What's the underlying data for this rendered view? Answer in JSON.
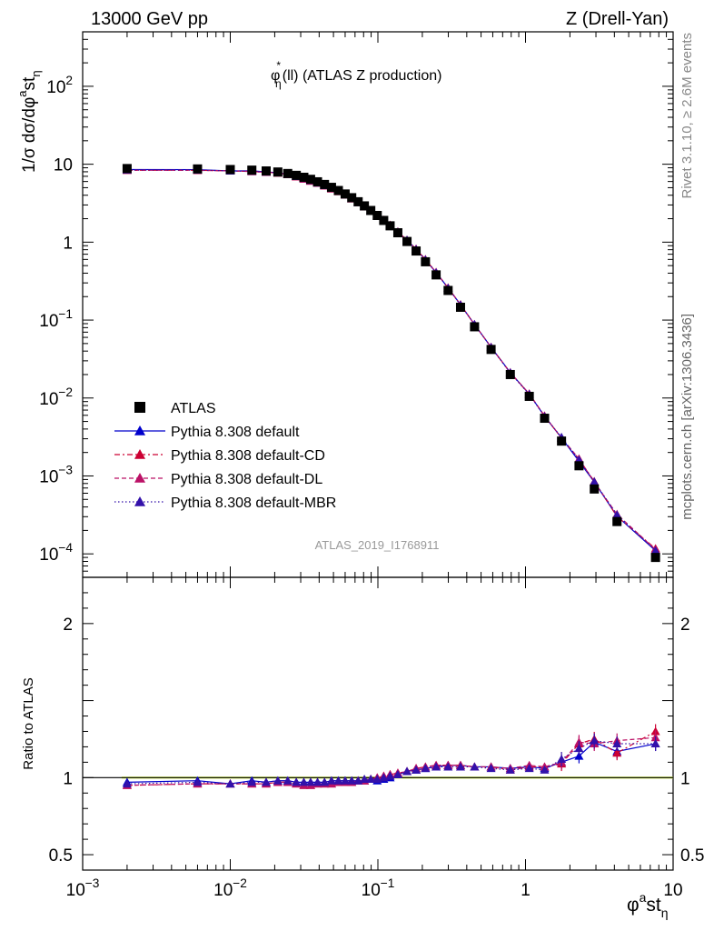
{
  "header": {
    "left": "13000 GeV pp",
    "right": "Z (Drell-Yan)"
  },
  "side_labels": {
    "rivet": "Rivet 3.1.10, ≥ 2.6M events",
    "mcplots": "mcplots.cern.ch [arXiv:1306.3436]"
  },
  "chart_data": {
    "type": "scatter",
    "title": "φ*η(ll) (ATLAS Z production)",
    "title_parts": {
      "main": "φ",
      "sup": "*",
      "sub": "η",
      "rest": "(ll) (ATLAS Z production)"
    },
    "analysis_id": "ATLAS_2019_I1768911",
    "xlabel": "φᵃstη",
    "xlabel_parts": {
      "a": "φ",
      "sup": "a",
      "b": "st",
      "sub": "η"
    },
    "ylabel": "1/σ dσ/dφᵃstη",
    "ylabel_parts": {
      "a": "1/σ dσ/dφ",
      "sup": "a",
      "b": "st",
      "sub": "η"
    },
    "ratio_ylabel": "Ratio to ATLAS",
    "xscale": "log",
    "yscale": "log",
    "xlim": [
      0.001,
      10
    ],
    "ylim": [
      5e-05,
      500
    ],
    "ratio_ylim": [
      0.4,
      2.3
    ],
    "x_ticks": [
      {
        "v": 0.001,
        "base": "10",
        "exp": "−3"
      },
      {
        "v": 0.01,
        "base": "10",
        "exp": "−2"
      },
      {
        "v": 0.1,
        "base": "10",
        "exp": "−1"
      },
      {
        "v": 1,
        "base": "1",
        "exp": ""
      },
      {
        "v": 10,
        "base": "10",
        "exp": ""
      }
    ],
    "y_ticks": [
      {
        "v": 0.0001,
        "base": "10",
        "exp": "−4"
      },
      {
        "v": 0.001,
        "base": "10",
        "exp": "−3"
      },
      {
        "v": 0.01,
        "base": "10",
        "exp": "−2"
      },
      {
        "v": 0.1,
        "base": "10",
        "exp": "−1"
      },
      {
        "v": 1,
        "base": "1",
        "exp": ""
      },
      {
        "v": 10,
        "base": "10",
        "exp": ""
      },
      {
        "v": 100,
        "base": "10",
        "exp": "2"
      }
    ],
    "ratio_ticks": [
      {
        "v": 0.5,
        "label": "0.5"
      },
      {
        "v": 1,
        "label": "1"
      },
      {
        "v": 2,
        "label": "2"
      }
    ],
    "legend_position": "bottom-left",
    "x": [
      0.002,
      0.006,
      0.01,
      0.014,
      0.0175,
      0.021,
      0.0245,
      0.028,
      0.0315,
      0.035,
      0.039,
      0.0435,
      0.0485,
      0.054,
      0.06,
      0.0665,
      0.0735,
      0.081,
      0.0895,
      0.099,
      0.1095,
      0.121,
      0.1365,
      0.1575,
      0.1815,
      0.21,
      0.248,
      0.299,
      0.363,
      0.4515,
      0.5845,
      0.789,
      1.0605,
      1.3465,
      1.7535,
      2.304,
      2.9235,
      4.167,
      7.6
    ],
    "atlas": [
      8.8,
      8.7,
      8.55,
      8.4,
      8.2,
      7.95,
      7.6,
      7.2,
      6.8,
      6.4,
      5.95,
      5.5,
      5.05,
      4.6,
      4.15,
      3.72,
      3.3,
      2.92,
      2.55,
      2.2,
      1.9,
      1.62,
      1.32,
      1.02,
      0.77,
      0.56,
      0.38,
      0.24,
      0.146,
      0.082,
      0.042,
      0.02,
      0.0105,
      0.0055,
      0.0028,
      0.00135,
      0.00068,
      0.00026,
      9e-05
    ],
    "series": [
      {
        "name": "Pythia 8.308 default",
        "color": "#0000cc",
        "dash": "",
        "ratio": [
          0.97,
          0.98,
          0.96,
          0.98,
          0.97,
          0.98,
          0.98,
          0.97,
          0.97,
          0.97,
          0.97,
          0.97,
          0.98,
          0.98,
          0.98,
          0.98,
          0.98,
          0.98,
          0.99,
          0.98,
          0.99,
          1.0,
          1.02,
          1.04,
          1.05,
          1.06,
          1.07,
          1.08,
          1.08,
          1.07,
          1.07,
          1.06,
          1.07,
          1.06,
          1.1,
          1.14,
          1.23,
          1.17,
          1.22
        ]
      },
      {
        "name": "Pythia 8.308 default-CD",
        "color": "#cc0033",
        "dash": "6,3,2,3",
        "ratio": [
          0.95,
          0.96,
          0.96,
          0.96,
          0.96,
          0.97,
          0.97,
          0.96,
          0.95,
          0.95,
          0.96,
          0.96,
          0.96,
          0.97,
          0.97,
          0.97,
          0.98,
          0.98,
          0.99,
          1.0,
          1.01,
          1.02,
          1.03,
          1.04,
          1.06,
          1.07,
          1.08,
          1.08,
          1.08,
          1.07,
          1.07,
          1.05,
          1.07,
          1.07,
          1.09,
          1.22,
          1.25,
          1.16,
          1.3
        ]
      },
      {
        "name": "Pythia 8.308 default-DL",
        "color": "#bb1166",
        "dash": "5,3",
        "ratio": [
          0.95,
          0.96,
          0.96,
          0.96,
          0.96,
          0.97,
          0.97,
          0.96,
          0.95,
          0.95,
          0.96,
          0.96,
          0.96,
          0.97,
          0.97,
          0.97,
          0.98,
          0.98,
          0.99,
          1.0,
          1.01,
          1.02,
          1.03,
          1.04,
          1.06,
          1.07,
          1.08,
          1.08,
          1.08,
          1.07,
          1.07,
          1.06,
          1.08,
          1.07,
          1.1,
          1.23,
          1.22,
          1.24,
          1.26
        ]
      },
      {
        "name": "Pythia 8.308 default-MBR",
        "color": "#3311aa",
        "dash": "1.5,2.5",
        "ratio": [
          0.96,
          0.97,
          0.96,
          0.97,
          0.97,
          0.98,
          0.98,
          0.97,
          0.97,
          0.97,
          0.97,
          0.97,
          0.98,
          0.98,
          0.98,
          0.98,
          0.98,
          0.99,
          0.99,
          0.99,
          1.0,
          1.01,
          1.02,
          1.04,
          1.05,
          1.06,
          1.07,
          1.07,
          1.07,
          1.07,
          1.06,
          1.05,
          1.06,
          1.05,
          1.12,
          1.19,
          1.24,
          1.22,
          1.22
        ]
      }
    ],
    "legend": [
      "ATLAS",
      "Pythia 8.308 default",
      "Pythia 8.308 default-CD",
      "Pythia 8.308 default-DL",
      "Pythia 8.308 default-MBR"
    ],
    "band_color": "#ccee33"
  }
}
